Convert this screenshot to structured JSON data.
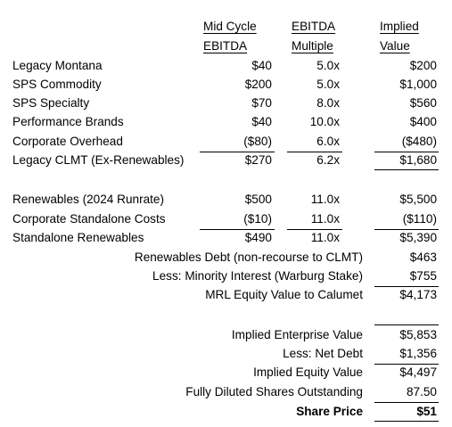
{
  "headers": {
    "col1": [
      "Mid Cycle",
      "EBITDA"
    ],
    "col2": [
      "EBITDA",
      "Multiple"
    ],
    "col3": [
      "Implied",
      "Value"
    ]
  },
  "segments": [
    {
      "label": "Legacy Montana",
      "ebitda": "$40",
      "multiple": "5.0x",
      "value": "$200"
    },
    {
      "label": "SPS Commodity",
      "ebitda": "$200",
      "multiple": "5.0x",
      "value": "$1,000"
    },
    {
      "label": "SPS Specialty",
      "ebitda": "$70",
      "multiple": "8.0x",
      "value": "$560"
    },
    {
      "label": "Performance Brands",
      "ebitda": "$40",
      "multiple": "10.0x",
      "value": "$400"
    },
    {
      "label": "Corporate Overhead",
      "ebitda": "($80)",
      "multiple": "6.0x",
      "value": "($480)"
    }
  ],
  "legacy_total": {
    "label": "Legacy CLMT (Ex-Renewables)",
    "ebitda": "$270",
    "multiple": "6.2x",
    "value": "$1,680"
  },
  "renewables": [
    {
      "label": "Renewables (2024 Runrate)",
      "ebitda": "$500",
      "multiple": "11.0x",
      "value": "$5,500"
    },
    {
      "label": "Corporate Standalone Costs",
      "ebitda": "($10)",
      "multiple": "11.0x",
      "value": "($110)"
    }
  ],
  "standalone": {
    "label": "Standalone Renewables",
    "ebitda": "$490",
    "multiple": "11.0x",
    "value": "$5,390"
  },
  "mrl": [
    {
      "label": "Renewables Debt (non-recourse to CLMT)",
      "value": "$463"
    },
    {
      "label": "Less: Minority Interest (Warburg Stake)",
      "value": "$755"
    },
    {
      "label": "MRL Equity Value to Calumet",
      "value": "$4,173"
    }
  ],
  "summary": [
    {
      "label": "Implied Enterprise Value",
      "value": "$5,853"
    },
    {
      "label": "Less: Net Debt",
      "value": "$1,356"
    },
    {
      "label": "Implied Equity Value",
      "value": "$4,497"
    },
    {
      "label": "Fully Diluted Shares Outstanding",
      "value": "87.50"
    }
  ],
  "share_price": {
    "label": "Share Price",
    "value": "$51"
  }
}
